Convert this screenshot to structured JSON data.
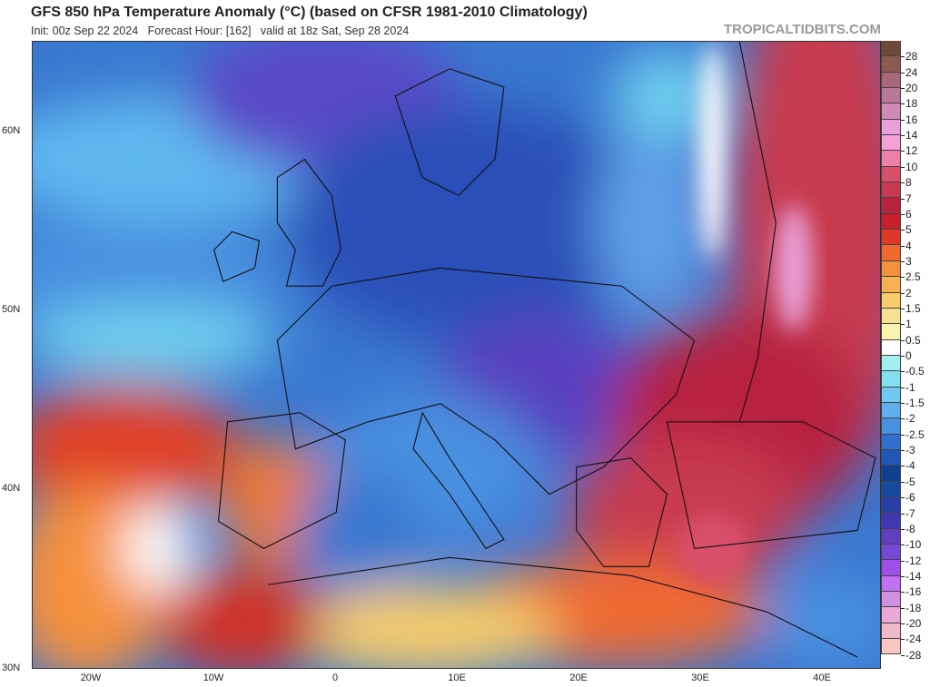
{
  "header": {
    "title": "GFS 850 hPa Temperature Anomaly (°C) (based on CFSR 1981-2010 Climatology)",
    "subtitle": "Init: 00z Sep 22 2024   Forecast Hour: [162]   valid at 18z Sat, Sep 28 2024",
    "brand": "TROPICALTIDBITS.COM"
  },
  "axes": {
    "lat_labels": [
      "60N",
      "50N",
      "40N",
      "30N"
    ],
    "lon_labels": [
      "20W",
      "10W",
      "0",
      "10E",
      "20E",
      "30E",
      "40E"
    ]
  },
  "colorbar": {
    "labels": [
      "28",
      "24",
      "20",
      "18",
      "16",
      "14",
      "12",
      "10",
      "8",
      "7",
      "6",
      "5",
      "4",
      "3",
      "2.5",
      "2",
      "1.5",
      "1",
      "0.5",
      "0",
      "-0.5",
      "-1",
      "-1.5",
      "-2",
      "-2.5",
      "-3",
      "-4",
      "-5",
      "-6",
      "-7",
      "-8",
      "-10",
      "-12",
      "-14",
      "-16",
      "-18",
      "-20",
      "-24",
      "-28"
    ],
    "colors": [
      "#6b4a3a",
      "#8c5a50",
      "#a8687a",
      "#b9789a",
      "#d08ab8",
      "#e8a0d8",
      "#f5a0d8",
      "#ee7fa8",
      "#d8506a",
      "#c83a50",
      "#b82440",
      "#c8202c",
      "#e03828",
      "#f06a30",
      "#f5903c",
      "#f8b050",
      "#f8cc6a",
      "#f8e090",
      "#f8f4b0",
      "#ffffff",
      "#a0f0f0",
      "#80e0f0",
      "#70c8f0",
      "#60b0f0",
      "#4890e0",
      "#3070d0",
      "#2058b8",
      "#104090",
      "#184aa0",
      "#2840a8",
      "#4038b0",
      "#6040c0",
      "#7848d8",
      "#a050e8",
      "#c070f0",
      "#d090e0",
      "#e8a8d8",
      "#f0b8c8",
      "#f8c8c0"
    ]
  }
}
